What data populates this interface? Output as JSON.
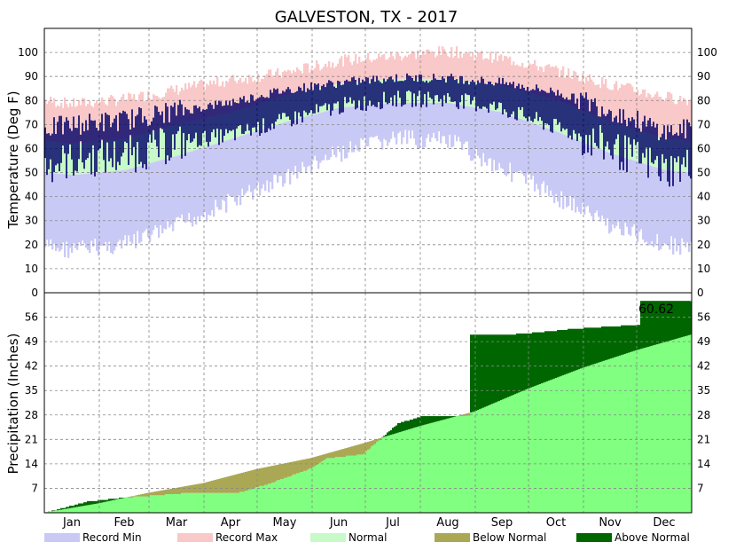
{
  "chart_data": {
    "title": "GALVESTON, TX - 2017",
    "type": "bar",
    "months": [
      "Jan",
      "Feb",
      "Mar",
      "Apr",
      "May",
      "Jun",
      "Jul",
      "Aug",
      "Sep",
      "Oct",
      "Nov",
      "Dec"
    ],
    "legend": {
      "placement": "bottom",
      "items": [
        {
          "label": "Record Min",
          "color": "#c9c9f6"
        },
        {
          "label": "Record Max",
          "color": "#f9c8c8"
        },
        {
          "label": "Normal",
          "color": "#c8f9c8"
        },
        {
          "label": "Below Normal",
          "color": "#aaa855"
        },
        {
          "label": "Above Normal",
          "color": "#006600"
        }
      ]
    },
    "temperature": {
      "ylabel": "Temperature (Deg F)",
      "ylim": [
        0,
        110
      ],
      "yticks": [
        0,
        10,
        20,
        30,
        40,
        50,
        60,
        70,
        80,
        90,
        100
      ],
      "colors": {
        "record_min": "#c9c9f6",
        "record_max": "#f9c8c8",
        "normal": "#c8f9c8",
        "actual": "#000066"
      },
      "normal_low_monthly": [
        49,
        51,
        57,
        64,
        71,
        77,
        79,
        79,
        75,
        67,
        58,
        51
      ],
      "normal_high_monthly": [
        62,
        64,
        70,
        75,
        82,
        87,
        89,
        89,
        86,
        80,
        71,
        64
      ],
      "record_low_monthly": [
        22,
        24,
        32,
        42,
        52,
        62,
        68,
        67,
        56,
        44,
        32,
        24
      ],
      "record_high_monthly": [
        76,
        78,
        82,
        86,
        89,
        94,
        96,
        98,
        95,
        90,
        84,
        79
      ],
      "actual_low_monthly": [
        56,
        58,
        63,
        66,
        72,
        78,
        81,
        81,
        77,
        69,
        61,
        52
      ],
      "actual_high_monthly": [
        69,
        71,
        75,
        79,
        84,
        87,
        89,
        89,
        87,
        83,
        75,
        66
      ]
    },
    "precipitation": {
      "ylabel": "Precipitation (Inches)",
      "ylim": [
        0,
        63
      ],
      "yticks": [
        7,
        14,
        21,
        28,
        35,
        42,
        49,
        56
      ],
      "colors": {
        "normal": "#80ff80",
        "below": "#aaa855",
        "above": "#006600"
      },
      "normal_cumulative_month_end": [
        2.7,
        5.7,
        8.5,
        12.5,
        15.7,
        20.0,
        24.8,
        29.0,
        35.5,
        41.5,
        46.5,
        51.0
      ],
      "actual_cumulative_points": [
        [
          1,
          0
        ],
        [
          25,
          3.2
        ],
        [
          45,
          4.3
        ],
        [
          80,
          5.6
        ],
        [
          110,
          5.7
        ],
        [
          126,
          8.1
        ],
        [
          150,
          12.5
        ],
        [
          160,
          15.6
        ],
        [
          180,
          16.7
        ],
        [
          200,
          25.6
        ],
        [
          215,
          27.8
        ],
        [
          238,
          27.8
        ],
        [
          241,
          50.9
        ],
        [
          270,
          51.2
        ],
        [
          300,
          52.7
        ],
        [
          335,
          53.8
        ],
        [
          337,
          60.5
        ],
        [
          365,
          60.6
        ]
      ],
      "annotation": "60.62"
    }
  }
}
